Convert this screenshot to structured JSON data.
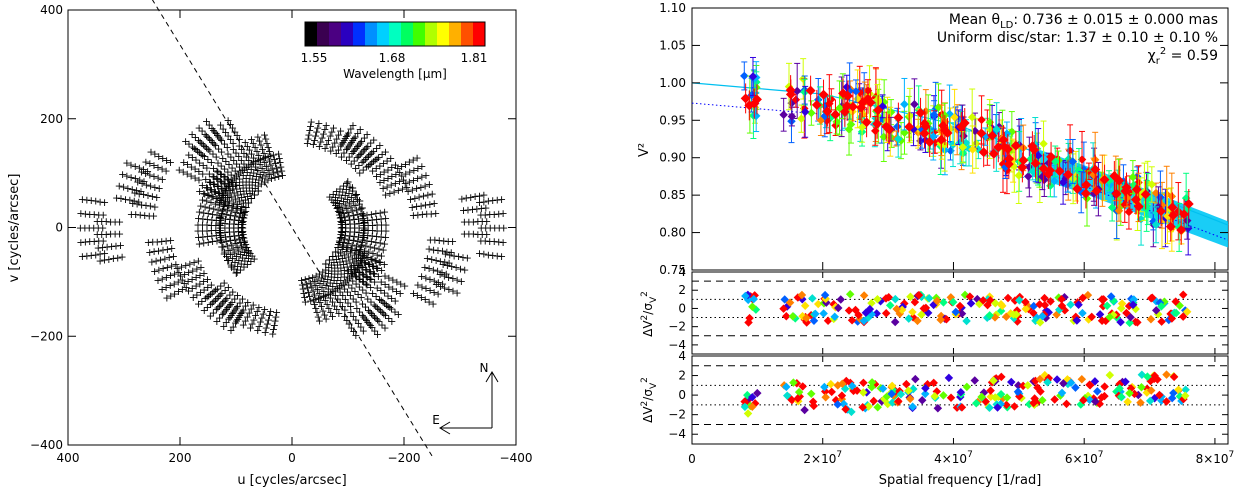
{
  "chart_data": [
    {
      "type": "scatter",
      "panel": "uv-coverage",
      "xlabel": "u [cycles/arcsec]",
      "ylabel": "v [cycles/arcsec]",
      "xlim": [
        400,
        -400
      ],
      "ylim": [
        -400,
        400
      ],
      "x_ticks": [
        "400",
        "200",
        "0",
        "−200",
        "−400"
      ],
      "x_tick_values": [
        400,
        200,
        0,
        -200,
        -400
      ],
      "y_ticks": [
        "−400",
        "−200",
        "0",
        "200",
        "400"
      ],
      "y_tick_values": [
        -400,
        -200,
        0,
        200,
        400
      ],
      "colorbar": {
        "label": "Wavelength [μm]",
        "ticks": [
          "1.55",
          "1.68",
          "1.81"
        ],
        "range": [
          1.55,
          1.81
        ],
        "colors": [
          "#000000",
          "#3a0050",
          "#4b0082",
          "#2a00c0",
          "#0030ff",
          "#0090ff",
          "#00d0ff",
          "#00ffc0",
          "#00ff60",
          "#40ff00",
          "#b0ff00",
          "#ffff00",
          "#ffb000",
          "#ff5000",
          "#ff0000"
        ]
      },
      "compass": {
        "north": "N",
        "east": "E"
      },
      "dashed_line": {
        "x1": 250,
        "y1": 420,
        "x2": -250,
        "y2": -420
      },
      "tracks": [
        {
          "r": 120,
          "a0": 20,
          "a1": 80
        },
        {
          "r": 160,
          "a0": 22,
          "a1": 75
        },
        {
          "r": 210,
          "a0": 28,
          "a1": 60
        },
        {
          "r": 230,
          "a0": 40,
          "a1": 55
        },
        {
          "r": 270,
          "a0": 5,
          "a1": 30
        },
        {
          "r": 300,
          "a0": 10,
          "a1": 25
        },
        {
          "r": 360,
          "a0": -8,
          "a1": 10
        },
        {
          "r": 150,
          "a0": -10,
          "a1": 40
        },
        {
          "r": 180,
          "a0": 100,
          "a1": 140
        },
        {
          "r": 200,
          "a0": 120,
          "a1": 160
        },
        {
          "r": 240,
          "a0": 150,
          "a1": 175
        },
        {
          "r": 330,
          "a0": 170,
          "a1": 185
        },
        {
          "r": 110,
          "a0": 140,
          "a1": 200
        }
      ],
      "grey_tracks": [
        {
          "r": 90,
          "a0": 150,
          "a1": 230
        },
        {
          "r": 130,
          "a0": -40,
          "a1": 10
        }
      ]
    },
    {
      "type": "scatter",
      "panel": "visibility",
      "ylabel": "V²",
      "xlim": [
        0,
        82000000
      ],
      "ylim": [
        0.75,
        1.1
      ],
      "y_ticks": [
        "0.75",
        "0.80",
        "0.85",
        "0.90",
        "0.95",
        "1.00",
        "1.05",
        "1.10"
      ],
      "y_tick_values": [
        0.75,
        0.8,
        0.85,
        0.9,
        0.95,
        1.0,
        1.05,
        1.1
      ],
      "annotations": {
        "line1_pre": "Mean θ",
        "line1_sub": "LD",
        "line1_post": ": 0.736 ± 0.015 ± 0.000 mas",
        "line2": "Uniform disc/star:  1.37 ± 0.10 ± 0.10 %",
        "line3_pre": "χ",
        "line3_sub": "r",
        "line3_sup": "2",
        "line3_post": " =   0.59"
      },
      "model_solid": {
        "x": [
          0,
          20000000,
          40000000,
          60000000,
          82000000
        ],
        "y": [
          1.0,
          0.985,
          0.945,
          0.885,
          0.81
        ]
      },
      "model_dotted": {
        "x": [
          0,
          20000000,
          40000000,
          60000000,
          82000000
        ],
        "y": [
          0.973,
          0.958,
          0.92,
          0.862,
          0.79
        ]
      },
      "clusters": [
        {
          "x0": 8000000,
          "x1": 10000000,
          "y": 0.97
        },
        {
          "x0": 14000000,
          "x1": 30000000,
          "y": 0.965
        },
        {
          "x0": 30000000,
          "x1": 40000000,
          "y": 0.94
        },
        {
          "x0": 40000000,
          "x1": 52000000,
          "y": 0.915
        },
        {
          "x0": 52000000,
          "x1": 66000000,
          "y": 0.875
        },
        {
          "x0": 66000000,
          "x1": 76000000,
          "y": 0.83
        }
      ]
    },
    {
      "type": "scatter",
      "panel": "residuals-1",
      "ylabel_main": "ΔV",
      "ylabel_sup": "2",
      "ylabel_den": "/σ",
      "ylabel_den_sub": "V",
      "ylabel_den_sup": "2",
      "ylim": [
        -5,
        4
      ],
      "y_ticks": [
        "4",
        "2",
        "0",
        "−2",
        "−4"
      ],
      "y_tick_values": [
        4,
        2,
        0,
        -2,
        -4
      ],
      "ref_dashed": [
        3,
        -3
      ],
      "ref_dotted": [
        1,
        -1
      ]
    },
    {
      "type": "scatter",
      "panel": "residuals-2",
      "ylabel_main": "ΔV",
      "ylabel_sup": "2",
      "ylabel_den": "/σ",
      "ylabel_den_sub": "V",
      "ylabel_den_sup": "2",
      "xlabel": "Spatial frequency [1/rad]",
      "xlim": [
        0,
        82000000
      ],
      "x_ticks": [
        "0",
        "2×10",
        "4×10",
        "6×10",
        "8×10"
      ],
      "x_tick_exp": "7",
      "x_tick_values": [
        0,
        20000000,
        40000000,
        60000000,
        80000000
      ],
      "ylim": [
        -5,
        4
      ],
      "y_ticks": [
        "4",
        "2",
        "0",
        "−2",
        "−4"
      ],
      "y_tick_values": [
        4,
        2,
        0,
        -2,
        -4
      ],
      "ref_dashed": [
        3,
        -3
      ],
      "ref_dotted": [
        1,
        -1
      ]
    }
  ]
}
